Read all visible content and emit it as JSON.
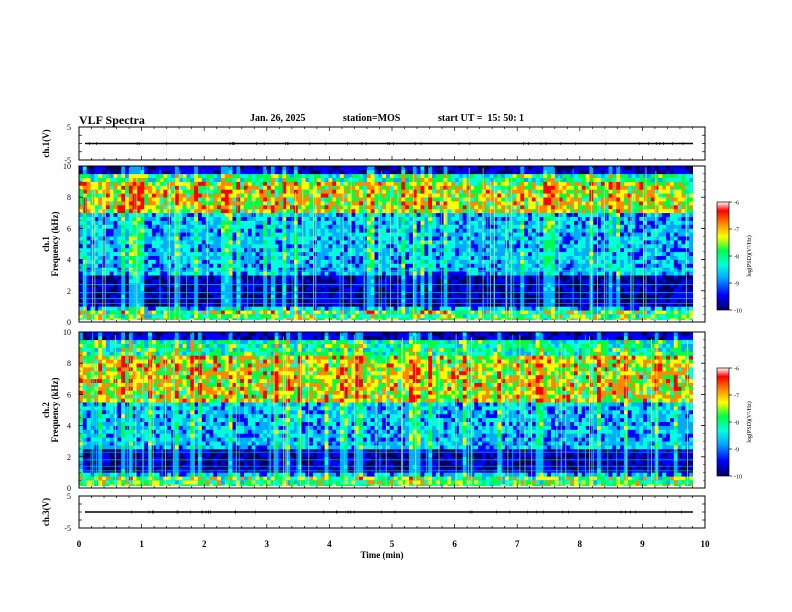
{
  "header": {
    "title": "VLF Spectra",
    "date": "Jan. 26, 2025",
    "station": "station=MOS",
    "start": "start UT =  15: 50: 1"
  },
  "chart_data": [
    {
      "type": "line",
      "panel": "ch1-waveform",
      "ylabel": "ch.1(V)",
      "ylim": [
        -5,
        5
      ],
      "yticks": [
        "5",
        "-5"
      ],
      "series": [
        {
          "values": [
            0.0
          ]
        }
      ]
    },
    {
      "type": "heatmap",
      "panel": "ch1-spectrogram",
      "ylabel": "ch.1  Frequency (kHz)",
      "ylim": [
        0,
        10
      ],
      "yticks": [
        "0",
        "2",
        "4",
        "6",
        "8",
        "10"
      ],
      "xlim": [
        0,
        10
      ],
      "colorbar": {
        "label": "log(PSD)(V²/Hz)",
        "range": [
          -10,
          -6
        ],
        "ticks": [
          "-6",
          "-7",
          "-8",
          "-9",
          "-10"
        ]
      },
      "intense_band_khz": [
        7.0,
        9.0
      ],
      "quiet_band_khz": [
        1.0,
        3.0
      ],
      "lines_khz": [
        0.5,
        1.2,
        1.5,
        1.9,
        2.4,
        3.3
      ]
    },
    {
      "type": "heatmap",
      "panel": "ch2-spectrogram",
      "ylabel": "ch.2  Frequency (kHz)",
      "ylim": [
        0,
        10
      ],
      "yticks": [
        "0",
        "2",
        "4",
        "6",
        "8",
        "10"
      ],
      "xlim": [
        0,
        10
      ],
      "colorbar": {
        "label": "log(PSD)(V²/Hz)",
        "range": [
          -10,
          -6
        ],
        "ticks": [
          "-6",
          "-7",
          "-8",
          "-9",
          "-10"
        ]
      },
      "intense_band_khz": [
        5.5,
        8.5
      ],
      "quiet_band_khz": [
        1.0,
        2.5
      ],
      "lines_khz": [
        0.5,
        1.1,
        1.4,
        1.8,
        2.3,
        2.9
      ]
    },
    {
      "type": "line",
      "panel": "ch3-waveform",
      "ylabel": "ch.3(V)",
      "ylim": [
        -5,
        5
      ],
      "yticks": [
        "5",
        "-5"
      ],
      "xlabel": "Time  (min)",
      "xlim": [
        0,
        10
      ],
      "xticks": [
        "0",
        "1",
        "2",
        "3",
        "4",
        "5",
        "6",
        "7",
        "8",
        "9",
        "10"
      ],
      "series": [
        {
          "values": [
            0.0
          ]
        }
      ]
    }
  ],
  "colors": {
    "colormap": [
      "#000060",
      "#0000ff",
      "#00aaff",
      "#00ffdd",
      "#00ff44",
      "#ffff00",
      "#ff8800",
      "#ff0000",
      "#ffffff"
    ]
  }
}
